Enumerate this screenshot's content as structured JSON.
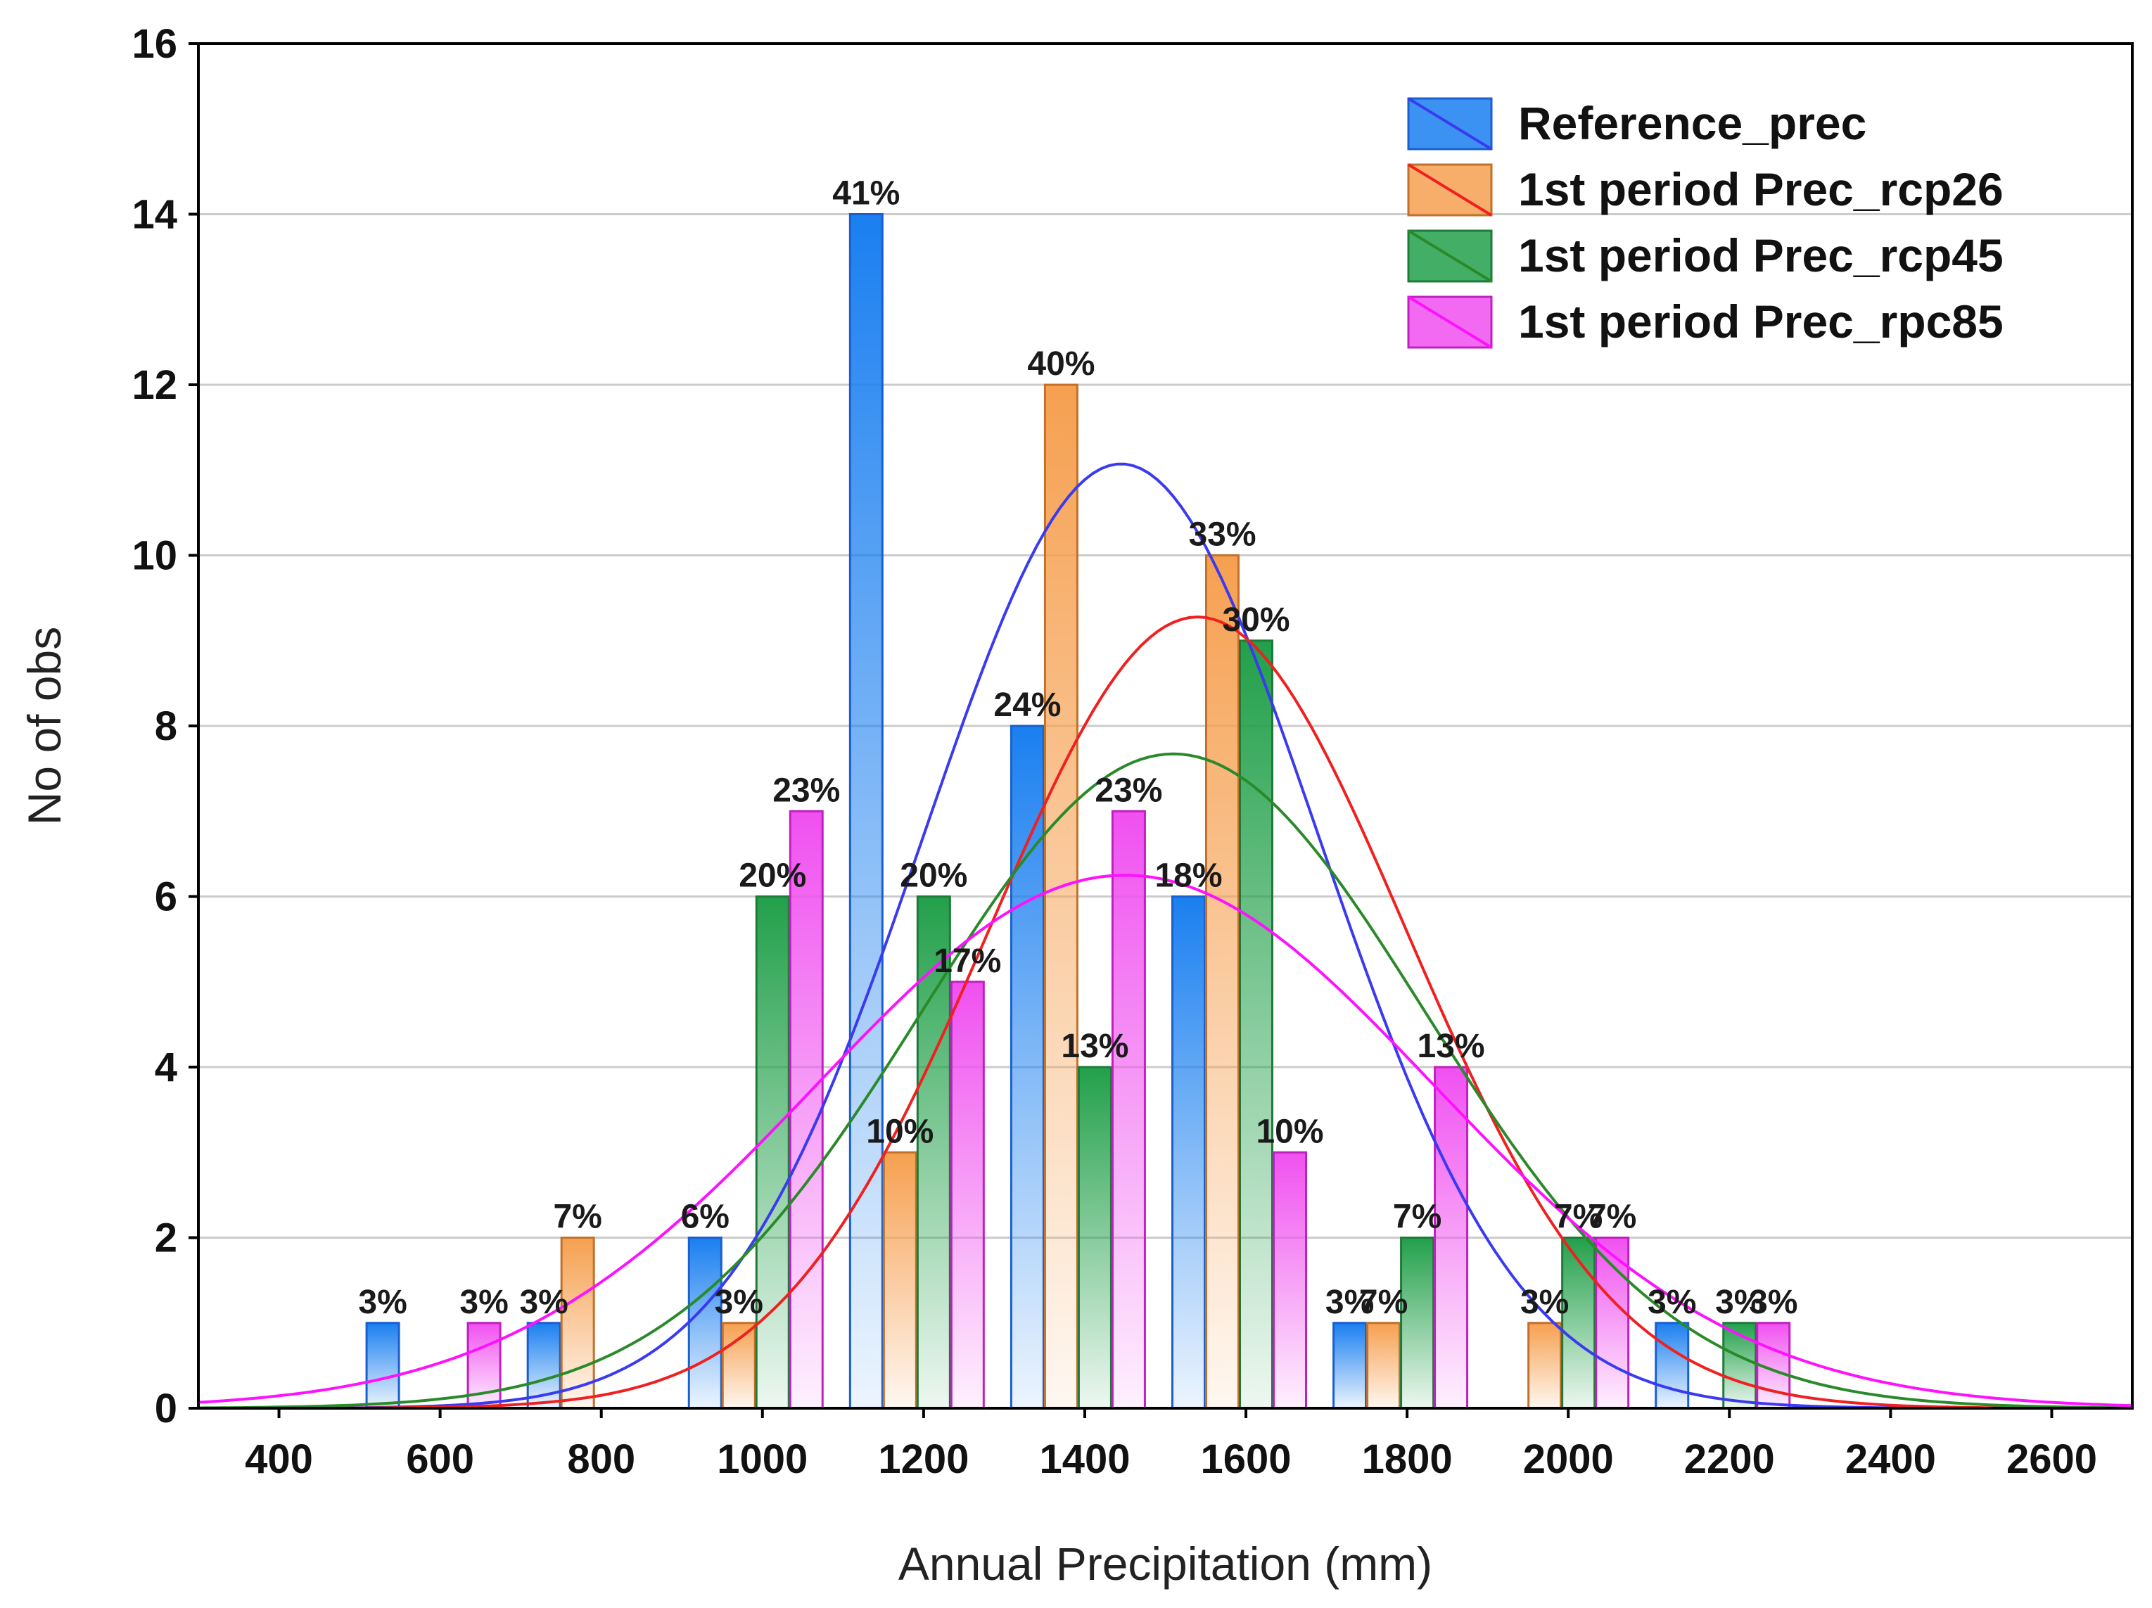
{
  "chart_data": {
    "type": "bar",
    "xlabel": "Annual Precipitation (mm)",
    "ylabel": "No of obs",
    "xlim": [
      300,
      2700
    ],
    "ylim": [
      0,
      16
    ],
    "xticks": [
      400,
      600,
      800,
      1000,
      1200,
      1400,
      1600,
      1800,
      2000,
      2200,
      2400,
      2600
    ],
    "yticks": [
      0,
      2,
      4,
      6,
      8,
      10,
      12,
      14,
      16
    ],
    "grid": "horizontal",
    "legend_position": "top-right",
    "bin_width": 200,
    "series": [
      {
        "name": "Reference_prec",
        "color": "#1a7ff0",
        "edge": "#1a5fd0",
        "curve_color": "#3a3af0",
        "offset": 0,
        "bins": [
          600,
          800,
          1000,
          1200,
          1400,
          1600,
          1800,
          2000,
          2200
        ],
        "values": [
          1,
          1,
          2,
          14,
          8,
          6,
          1,
          0,
          1
        ],
        "labels": [
          "3%",
          "3%",
          "6%",
          "41%",
          "24%",
          "18%",
          "3%",
          "",
          "3%"
        ],
        "mean": 1445,
        "sd": 245,
        "n": 34
      },
      {
        "name": "1st period Prec_rcp26",
        "color": "#f6a050",
        "edge": "#c2702a",
        "curve_color": "#f02020",
        "offset": 1,
        "bins": [
          800,
          1000,
          1200,
          1400,
          1600,
          1800,
          2000
        ],
        "values": [
          2,
          1,
          3,
          12,
          10,
          1,
          1
        ],
        "labels": [
          "7%",
          "3%",
          "10%",
          "40%",
          "33%",
          "7%",
          "3%"
        ],
        "mean": 1540,
        "sd": 258,
        "n": 30
      },
      {
        "name": "1st period Prec_rcp45",
        "color": "#22a04a",
        "edge": "#1f7a3a",
        "curve_color": "#2a8a2a",
        "offset": 2,
        "bins": [
          1000,
          1200,
          1400,
          1600,
          1800,
          2000,
          2200
        ],
        "values": [
          6,
          6,
          4,
          9,
          2,
          2,
          1
        ],
        "labels": [
          "20%",
          "20%",
          "13%",
          "30%",
          "7%",
          "7%",
          "3%"
        ],
        "mean": 1510,
        "sd": 312,
        "n": 30
      },
      {
        "name": "1st period Prec_rpc85",
        "color": "#f050f0",
        "edge": "#c020c0",
        "curve_color": "#ff10ff",
        "offset": 3,
        "bins": [
          600,
          1000,
          1200,
          1400,
          1600,
          1800,
          2000,
          2200
        ],
        "values": [
          1,
          7,
          5,
          7,
          3,
          4,
          2,
          1
        ],
        "labels": [
          "3%",
          "23%",
          "17%",
          "23%",
          "10%",
          "13%",
          "7%",
          "3%"
        ],
        "mean": 1450,
        "sd": 383,
        "n": 30
      }
    ]
  }
}
